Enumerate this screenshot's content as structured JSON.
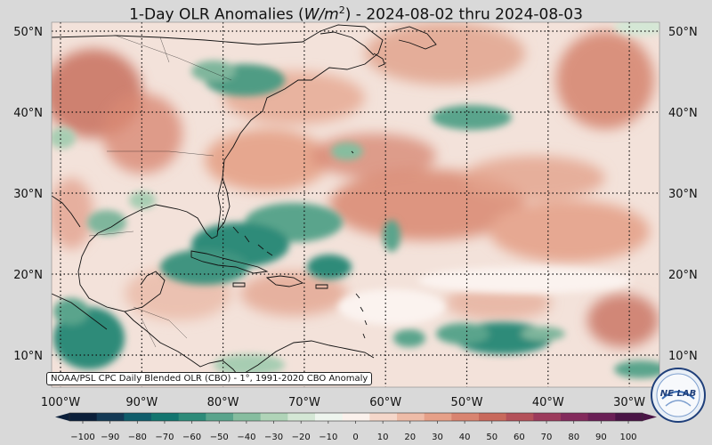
{
  "title": {
    "prefix": "1-Day OLR Anomalies (",
    "unit_italic": "W/m",
    "unit_sup": "2",
    "suffix": ") - 2024-08-02 thru 2024-08-03"
  },
  "map": {
    "lon_labels": [
      "100°W",
      "90°W",
      "80°W",
      "70°W",
      "60°W",
      "50°W",
      "40°W",
      "30°W"
    ],
    "lat_labels": [
      "50°N",
      "40°N",
      "30°N",
      "20°N",
      "10°N"
    ],
    "background_color": "#f3e2da",
    "positive_color": "#c8705e",
    "negative_color": "#2e8a74"
  },
  "source_note": "NOAA/PSL CPC Daily Blended OLR (CBO) - 1°, 1991-2020 CBO Anomaly",
  "colorbar": {
    "ticks": [
      "−100",
      "−90",
      "−80",
      "−70",
      "−60",
      "−50",
      "−40",
      "−30",
      "−20",
      "−10",
      "0",
      "10",
      "20",
      "30",
      "40",
      "50",
      "60",
      "70",
      "80",
      "90",
      "100"
    ],
    "colors": [
      "#0b1f3a",
      "#143a56",
      "#0f5d6b",
      "#12756f",
      "#2d8b79",
      "#5aa48c",
      "#86bd9f",
      "#b0d4b8",
      "#d4e7d5",
      "#eef5ee",
      "#fbf1ec",
      "#f5d7ca",
      "#eebca8",
      "#e6a088",
      "#d98470",
      "#c8695c",
      "#b4515a",
      "#9c3b5c",
      "#832a5c",
      "#6a1f56",
      "#4a1446"
    ]
  },
  "logo": {
    "text": "NE LAB",
    "icon": "psl-logo-icon"
  }
}
